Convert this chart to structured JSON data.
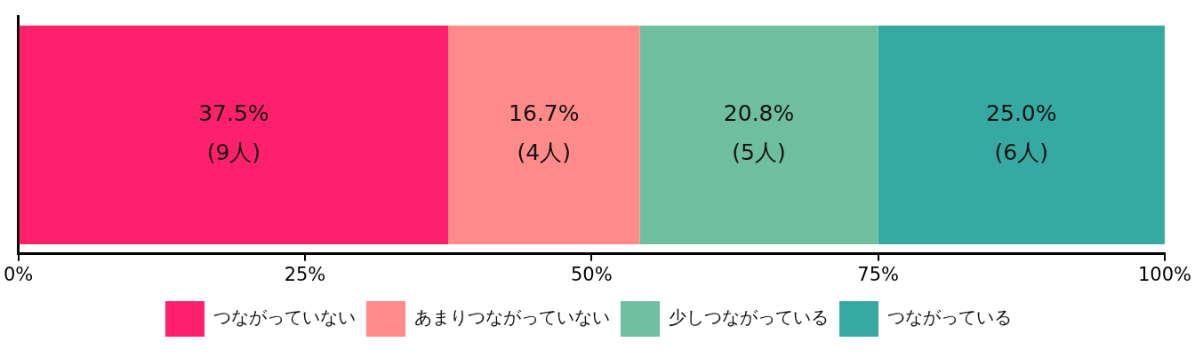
{
  "chart_data": {
    "type": "bar",
    "orientation": "horizontal",
    "stacked": true,
    "categories": [
      null
    ],
    "series": [
      {
        "name": "つながっていない",
        "color": "#fe206c",
        "values": [
          37.5
        ],
        "value_labels": [
          "37.5%\n(9人)"
        ]
      },
      {
        "name": "あまりつながっていない",
        "color": "#fe8a8a",
        "values": [
          16.7
        ],
        "value_labels": [
          "16.7%\n(4人)"
        ]
      },
      {
        "name": "少しつながっている",
        "color": "#6fbe9f",
        "values": [
          20.8
        ],
        "value_labels": [
          "20.8%\n(5人)"
        ]
      },
      {
        "name": "つながっている",
        "color": "#36aaa2",
        "values": [
          25.0
        ],
        "value_labels": [
          "25.0%\n(6人)"
        ]
      }
    ],
    "xlim": [
      0,
      100
    ],
    "xticks": [
      {
        "value": 0,
        "label": "0%"
      },
      {
        "value": 25,
        "label": "25%"
      },
      {
        "value": 50,
        "label": "50%"
      },
      {
        "value": 75,
        "label": "75%"
      },
      {
        "value": 100,
        "label": "100%"
      }
    ],
    "grid": false,
    "legend": "bottom"
  }
}
